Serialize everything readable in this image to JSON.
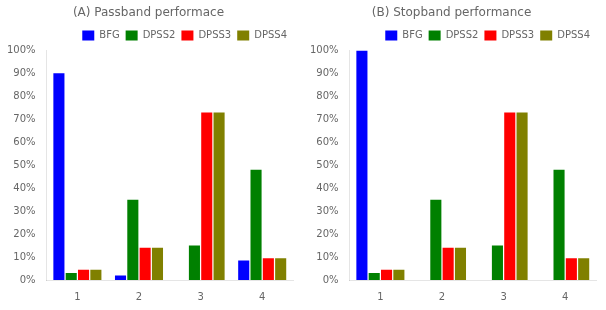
{
  "chart_data": [
    {
      "type": "bar",
      "title": "(A) Passband performace",
      "categories": [
        "1",
        "2",
        "3",
        "4"
      ],
      "series": [
        {
          "name": "BFG",
          "color": "#0000ff",
          "values": [
            90,
            2,
            0,
            8.5
          ]
        },
        {
          "name": "DPSS2",
          "color": "#008000",
          "values": [
            3,
            35,
            15,
            48
          ]
        },
        {
          "name": "DPSS3",
          "color": "#ff0000",
          "values": [
            4.5,
            14,
            73,
            9.5
          ]
        },
        {
          "name": "DPSS4",
          "color": "#808000",
          "values": [
            4.5,
            14,
            73,
            9.5
          ]
        }
      ],
      "ylim": [
        0,
        100
      ],
      "yticks": [
        {
          "value": 0,
          "label": "0%"
        },
        {
          "value": 10,
          "label": "10%"
        },
        {
          "value": 20,
          "label": "20%"
        },
        {
          "value": 30,
          "label": "30%"
        },
        {
          "value": 40,
          "label": "40%"
        },
        {
          "value": 50,
          "label": "50%"
        },
        {
          "value": 60,
          "label": "60%"
        },
        {
          "value": 70,
          "label": "70%"
        },
        {
          "value": 80,
          "label": "80%"
        },
        {
          "value": 90,
          "label": "90%"
        },
        {
          "value": 100,
          "label": "100%"
        }
      ],
      "legend": "upper right",
      "grid": false
    },
    {
      "type": "bar",
      "title": "(B) Stopband performance",
      "categories": [
        "1",
        "2",
        "3",
        "4"
      ],
      "series": [
        {
          "name": "BFG",
          "color": "#0000ff",
          "values": [
            100,
            0,
            0,
            0
          ]
        },
        {
          "name": "DPSS2",
          "color": "#008000",
          "values": [
            3,
            35,
            15,
            48
          ]
        },
        {
          "name": "DPSS3",
          "color": "#ff0000",
          "values": [
            4.5,
            14,
            73,
            9.5
          ]
        },
        {
          "name": "DPSS4",
          "color": "#808000",
          "values": [
            4.5,
            14,
            73,
            9.5
          ]
        }
      ],
      "ylim": [
        0,
        100
      ],
      "yticks": [
        {
          "value": 0,
          "label": "0%"
        },
        {
          "value": 10,
          "label": "10%"
        },
        {
          "value": 20,
          "label": "20%"
        },
        {
          "value": 30,
          "label": "30%"
        },
        {
          "value": 40,
          "label": "40%"
        },
        {
          "value": 50,
          "label": "50%"
        },
        {
          "value": 60,
          "label": "60%"
        },
        {
          "value": 70,
          "label": "70%"
        },
        {
          "value": 80,
          "label": "80%"
        },
        {
          "value": 90,
          "label": "90%"
        },
        {
          "value": 100,
          "label": "100%"
        }
      ],
      "legend": "upper right",
      "grid": false
    }
  ]
}
